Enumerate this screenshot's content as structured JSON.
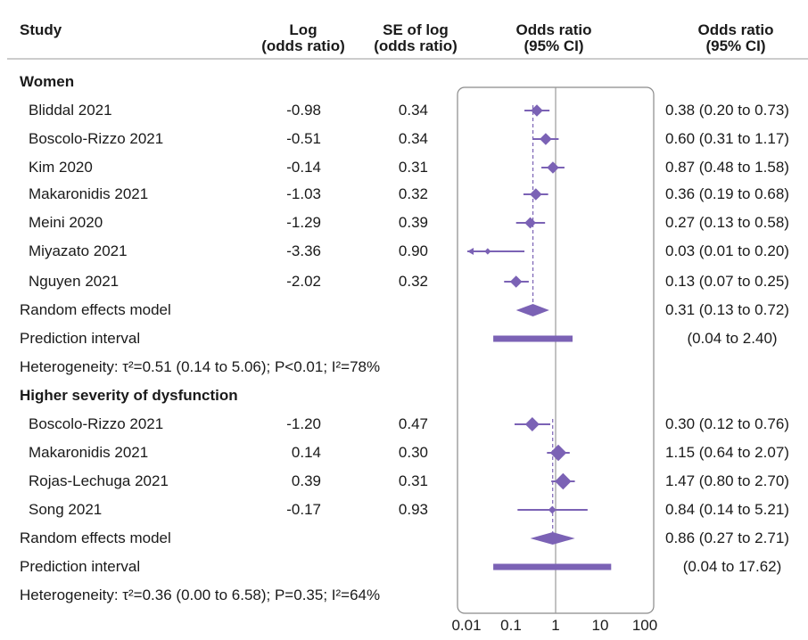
{
  "headers": {
    "study": "Study",
    "log_or_1": "Log",
    "log_or_2": "(odds ratio)",
    "se_1": "SE of log",
    "se_2": "(odds ratio)",
    "or_plot_1": "Odds ratio",
    "or_plot_2": "(95% CI)",
    "or_text_1": "Odds ratio",
    "or_text_2": "(95% CI)"
  },
  "groups": [
    {
      "title": "Women",
      "studies": [
        {
          "name": "Bliddal 2021",
          "log": "-0.98",
          "se": "0.34",
          "ci": "0.38 (0.20 to 0.73)"
        },
        {
          "name": "Boscolo-Rizzo 2021",
          "log": "-0.51",
          "se": "0.34",
          "ci": "0.60 (0.31 to 1.17)"
        },
        {
          "name": "Kim 2020",
          "log": "-0.14",
          "se": "0.31",
          "ci": "0.87 (0.48 to 1.58)"
        },
        {
          "name": "Makaronidis 2021",
          "log": "-1.03",
          "se": "0.32",
          "ci": "0.36 (0.19 to 0.68)"
        },
        {
          "name": "Meini 2020",
          "log": "-1.29",
          "se": "0.39",
          "ci": "0.27 (0.13 to 0.58)"
        },
        {
          "name": "Miyazato 2021",
          "log": "-3.36",
          "se": "0.90",
          "ci": "0.03 (0.01 to 0.20)"
        },
        {
          "name": "Nguyen 2021",
          "log": "-2.02",
          "se": "0.32",
          "ci": "0.13 (0.07 to 0.25)"
        }
      ],
      "random_label": "Random effects model",
      "random_ci": "0.31 (0.13 to 0.72)",
      "prediction_label": "Prediction interval",
      "prediction_ci": "(0.04 to 2.40)",
      "heterogeneity": "Heterogeneity: τ²=0.51 (0.14 to 5.06); P<0.01; I²=78%"
    },
    {
      "title": "Higher severity of dysfunction",
      "studies": [
        {
          "name": "Boscolo-Rizzo 2021",
          "log": "-1.20",
          "se": "0.47",
          "ci": "0.30 (0.12 to 0.76)"
        },
        {
          "name": "Makaronidis 2021",
          "log": "0.14",
          "se": "0.30",
          "ci": "1.15 (0.64 to 2.07)"
        },
        {
          "name": "Rojas-Lechuga 2021",
          "log": "0.39",
          "se": "0.31",
          "ci": "1.47 (0.80 to 2.70)"
        },
        {
          "name": "Song 2021",
          "log": "-0.17",
          "se": "0.93",
          "ci": "0.84 (0.14 to 5.21)"
        }
      ],
      "random_label": "Random effects model",
      "random_ci": "0.86 (0.27 to 2.71)",
      "prediction_label": "Prediction interval",
      "prediction_ci": "(0.04 to 17.62)",
      "heterogeneity": "Heterogeneity: τ²=0.36 (0.00 to 6.58); P=0.35; I²=64%"
    }
  ],
  "colors": {
    "marker": "#7b62b5",
    "axis": "#9a9a9a",
    "panel_border": "#8a8a8a",
    "rule": "#9a9a9a"
  },
  "chart_data": {
    "type": "forest",
    "x_scale": "log",
    "xlim": [
      0.01,
      100
    ],
    "null_line": 1,
    "x_ticks": [
      "0.01",
      "0.1",
      "1",
      "10",
      "100"
    ],
    "xlabel": "",
    "series": [
      {
        "name": "Women",
        "points": [
          {
            "label": "Bliddal 2021",
            "or": 0.38,
            "lo": 0.2,
            "hi": 0.73,
            "weight": 0.85
          },
          {
            "label": "Boscolo-Rizzo 2021",
            "or": 0.6,
            "lo": 0.31,
            "hi": 1.17,
            "weight": 0.85
          },
          {
            "label": "Kim 2020",
            "or": 0.87,
            "lo": 0.48,
            "hi": 1.58,
            "weight": 0.85
          },
          {
            "label": "Makaronidis 2021",
            "or": 0.36,
            "lo": 0.19,
            "hi": 0.68,
            "weight": 0.85
          },
          {
            "label": "Meini 2020",
            "or": 0.27,
            "lo": 0.13,
            "hi": 0.58,
            "weight": 0.8
          },
          {
            "label": "Miyazato 2021",
            "or": 0.03,
            "lo": 0.01,
            "hi": 0.2,
            "weight": 0.45,
            "lo_arrow": true
          },
          {
            "label": "Nguyen 2021",
            "or": 0.13,
            "lo": 0.07,
            "hi": 0.25,
            "weight": 0.85
          }
        ],
        "pooled": {
          "or": 0.31,
          "lo": 0.13,
          "hi": 0.72
        },
        "prediction": {
          "lo": 0.04,
          "hi": 2.4
        }
      },
      {
        "name": "Higher severity of dysfunction",
        "points": [
          {
            "label": "Boscolo-Rizzo 2021",
            "or": 0.3,
            "lo": 0.12,
            "hi": 0.76,
            "weight": 1.0
          },
          {
            "label": "Makaronidis 2021",
            "or": 1.15,
            "lo": 0.64,
            "hi": 2.07,
            "weight": 1.15
          },
          {
            "label": "Rojas-Lechuga 2021",
            "or": 1.47,
            "lo": 0.8,
            "hi": 2.7,
            "weight": 1.15
          },
          {
            "label": "Song 2021",
            "or": 0.84,
            "lo": 0.14,
            "hi": 5.21,
            "weight": 0.55
          }
        ],
        "pooled": {
          "or": 0.86,
          "lo": 0.27,
          "hi": 2.71
        },
        "prediction": {
          "lo": 0.04,
          "hi": 17.62
        }
      }
    ]
  }
}
